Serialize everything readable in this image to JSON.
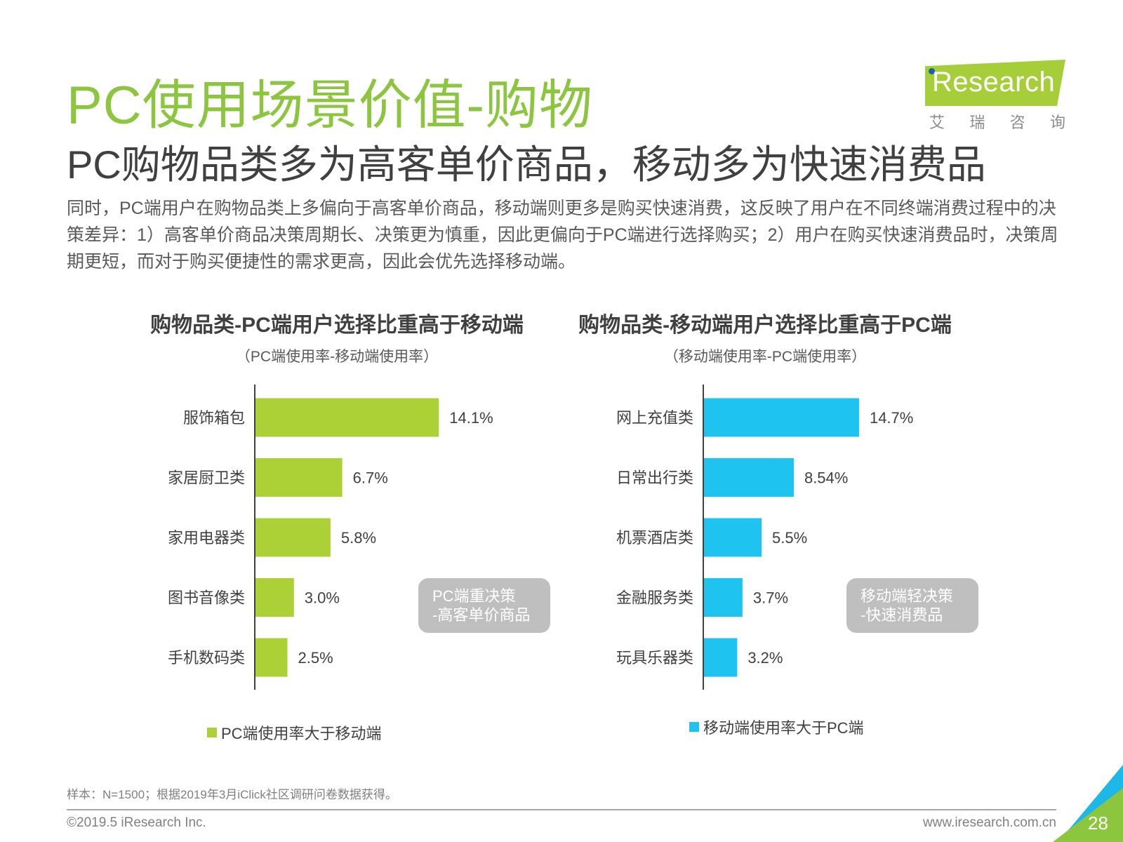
{
  "header": {
    "title": "PC使用场景价值-购物",
    "subtitle": "PC购物品类多为高客单价商品，移动多为快速消费品",
    "body": "同时，PC端用户在购物品类上多偏向于高客单价商品，移动端则更多是购买快速消费，这反映了用户在不同终端消费过程中的决策差异：1）高客单价商品决策周期长、决策更为慎重，因此更偏向于PC端进行选择购买；2）用户在购买快速消费品时，决策周期更短，而对于购买便捷性的需求更高，因此会优先选择移动端。"
  },
  "logo": {
    "word": "Research",
    "cn_chars": [
      "艾",
      "瑞",
      "咨",
      "询"
    ]
  },
  "chart_data": [
    {
      "type": "bar",
      "orientation": "horizontal",
      "title": "购物品类-PC端用户选择比重高于移动端",
      "subtitle": "（PC端使用率-移动端使用率）",
      "categories": [
        "服饰箱包",
        "家居厨卫类",
        "家用电器类",
        "图书音像类",
        "手机数码类"
      ],
      "series": [
        {
          "name": "PC端使用率大于移动端",
          "values": [
            14.1,
            6.7,
            5.8,
            3.0,
            2.5
          ],
          "labels": [
            "14.1%",
            "6.7%",
            "5.8%",
            "3.0%",
            "2.5%"
          ],
          "color": "#acd136"
        }
      ],
      "legend": "bottom",
      "grid": false,
      "callout": "PC端重决策\n-高客单价商品"
    },
    {
      "type": "bar",
      "orientation": "horizontal",
      "title": "购物品类-移动端用户选择比重高于PC端",
      "subtitle": "（移动端使用率-PC端使用率）",
      "categories": [
        "网上充值类",
        "日常出行类",
        "机票酒店类",
        "金融服务类",
        "玩具乐器类"
      ],
      "series": [
        {
          "name": "移动端使用率大于PC端",
          "values": [
            14.7,
            8.54,
            5.5,
            3.7,
            3.2
          ],
          "labels": [
            "14.7%",
            "8.54%",
            "5.5%",
            "3.7%",
            "3.2%"
          ],
          "color": "#1ec3ef"
        }
      ],
      "legend": "bottom",
      "grid": false,
      "callout": "移动端轻决策\n-快速消费品"
    }
  ],
  "footer": {
    "note": "样本：N=1500；根据2019年3月iClick社区调研问卷数据获得。",
    "copyright": "©2019.5 iResearch Inc.",
    "website": "www.iresearch.com.cn",
    "page": "28"
  }
}
